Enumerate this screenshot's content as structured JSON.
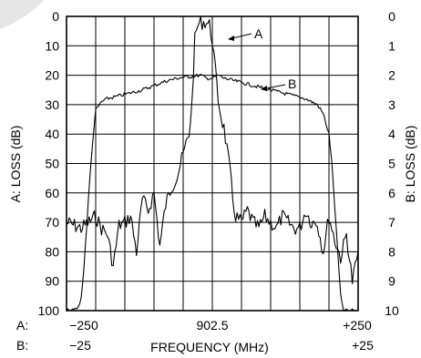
{
  "chart_data": {
    "type": "line",
    "xlabel": "FREQUENCY (MHz)",
    "y_left_label": "A: LOSS (dB)",
    "y_right_label": "B: LOSS (dB)",
    "ylim_left": [
      0,
      100
    ],
    "ylim_right": [
      0,
      10
    ],
    "y_left_ticks": [
      "0",
      "10",
      "20",
      "30",
      "40",
      "50",
      "60",
      "70",
      "80",
      "90",
      "100"
    ],
    "y_right_ticks": [
      "0",
      "1",
      "2",
      "3",
      "4",
      "5",
      "6",
      "7",
      "8",
      "9",
      "10"
    ],
    "x_center_label": "902.5",
    "x_scale_A": {
      "prefix": "A:",
      "left": "−250",
      "right": "+250"
    },
    "x_scale_B": {
      "prefix": "B:",
      "left": "−25",
      "right": "+25"
    },
    "grid": true,
    "series": [
      {
        "name": "A",
        "x_offset_mhz": [
          -250,
          -225,
          -200,
          -190,
          -180,
          -170,
          -160,
          -150,
          -140,
          -130,
          -120,
          -110,
          -100,
          -90,
          -80,
          -70,
          -60,
          -50,
          -40,
          -35,
          -30,
          -25,
          -20,
          -15,
          -10,
          -5,
          0,
          5,
          10,
          15,
          20,
          25,
          30,
          35,
          40,
          50,
          60,
          70,
          80,
          90,
          100,
          110,
          120,
          130,
          140,
          150,
          160,
          170,
          180,
          190,
          200,
          210,
          220,
          230,
          240,
          250
        ],
        "loss_db": [
          70,
          72,
          68,
          72,
          74,
          85,
          71,
          70,
          68,
          80,
          62,
          66,
          60,
          78,
          64,
          58,
          54,
          47,
          40,
          30,
          8,
          3,
          2,
          2,
          2,
          3,
          8,
          18,
          28,
          34,
          38,
          45,
          52,
          62,
          68,
          70,
          66,
          70,
          72,
          68,
          70,
          72,
          68,
          70,
          72,
          72,
          66,
          70,
          70,
          80,
          68,
          76,
          82,
          74,
          90,
          80
        ]
      },
      {
        "name": "B",
        "x_offset_mhz": [
          -25,
          -24,
          -23,
          -22.5,
          -22,
          -21.5,
          -21,
          -20.5,
          -20,
          -19,
          -18,
          -16,
          -14,
          -12,
          -10,
          -8,
          -6,
          -4,
          -2,
          -1,
          0,
          1,
          2,
          4,
          6,
          8,
          10,
          12,
          14,
          16,
          18,
          19,
          20,
          20.5,
          21,
          21.5,
          22,
          22.5,
          23,
          24,
          25
        ],
        "loss_db": [
          10,
          10,
          9.9,
          9.6,
          8.5,
          7,
          5.5,
          4.2,
          3.2,
          2.9,
          2.8,
          2.7,
          2.6,
          2.5,
          2.35,
          2.2,
          2.1,
          2.05,
          2.0,
          2.1,
          2.1,
          2.0,
          2.1,
          2.2,
          2.3,
          2.4,
          2.5,
          2.6,
          2.7,
          2.8,
          3.0,
          3.3,
          4.0,
          5.0,
          6.5,
          8.0,
          9.5,
          10,
          10,
          10,
          10
        ]
      }
    ]
  }
}
